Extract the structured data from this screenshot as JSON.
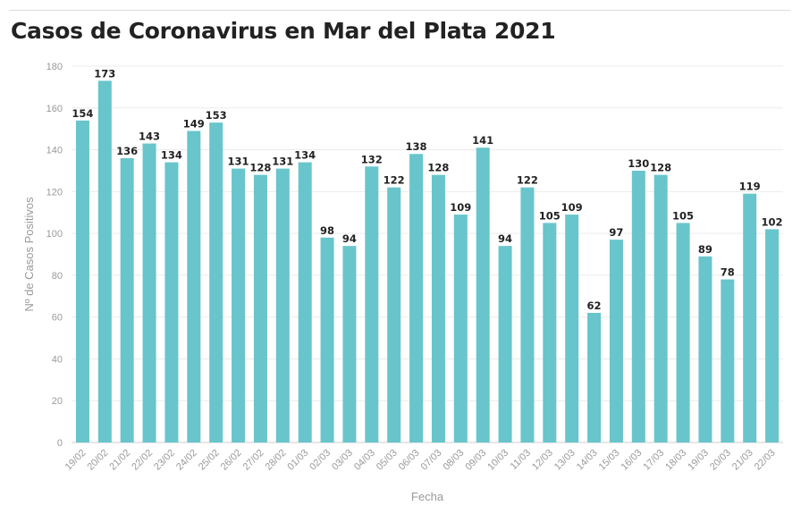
{
  "header": {
    "title": "Casos de Coronavirus en Mar del Plata 2021"
  },
  "colors": {
    "bar": "#68c5cb",
    "grid": "#ebebeb",
    "axis": "#cccccc"
  },
  "chart_data": {
    "type": "bar",
    "title": "Casos de Coronavirus en Mar del Plata 2021",
    "xlabel": "Fecha",
    "ylabel": "Nº de Casos Positivos",
    "ylim": [
      0,
      180
    ],
    "yticks": [
      0,
      20,
      40,
      60,
      80,
      100,
      120,
      140,
      160,
      180
    ],
    "grid": true,
    "categories": [
      "19/02",
      "20/02",
      "21/02",
      "22/02",
      "23/02",
      "24/02",
      "25/02",
      "26/02",
      "27/02",
      "28/02",
      "01/03",
      "02/03",
      "03/03",
      "04/03",
      "05/03",
      "06/03",
      "07/03",
      "08/03",
      "09/03",
      "10/03",
      "11/03",
      "12/03",
      "13/03",
      "14/03",
      "15/03",
      "16/03",
      "17/03",
      "18/03",
      "19/03",
      "20/03",
      "21/03",
      "22/03"
    ],
    "values": [
      154,
      173,
      136,
      143,
      134,
      149,
      153,
      131,
      128,
      131,
      134,
      98,
      94,
      132,
      122,
      138,
      128,
      109,
      141,
      94,
      122,
      105,
      109,
      62,
      97,
      130,
      128,
      105,
      89,
      78,
      119,
      102
    ]
  }
}
